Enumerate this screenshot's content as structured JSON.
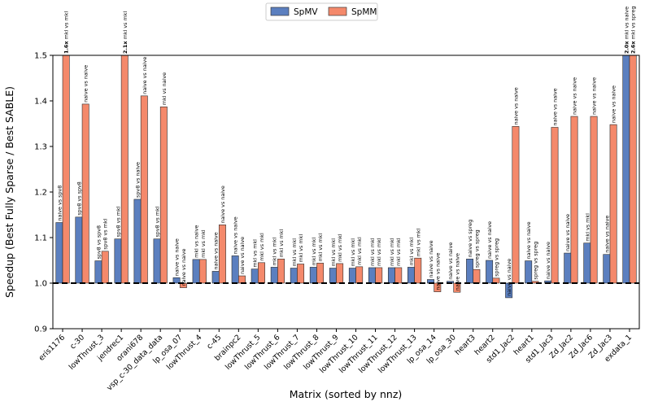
{
  "chart_data": {
    "type": "bar",
    "title": "",
    "xlabel": "Matrix (sorted by nnz)",
    "ylabel": "Speedup (Best Fully Sparse / Best SABLE)",
    "ylim": [
      0.9,
      1.5
    ],
    "yticks": [
      0.9,
      1.0,
      1.1,
      1.2,
      1.3,
      1.4,
      1.5
    ],
    "baseline": 1.0,
    "legend": {
      "position": "top-center",
      "entries": [
        "SpMV",
        "SpMM"
      ]
    },
    "categories": [
      "eris1176",
      "c-30",
      "lowThrust_3",
      "jendrec1",
      "orani678",
      "vsp_c-30_data_data",
      "lp_osa_07",
      "lowThrust_4",
      "c-45",
      "brainpc2",
      "lowThrust_5",
      "lowThrust_6",
      "lowThrust_7",
      "lowThrust_8",
      "lowThrust_9",
      "lowThrust_10",
      "lowThrust_11",
      "lowThrust_12",
      "lowThrust_13",
      "lp_osa_14",
      "lp_osa_30",
      "heart3",
      "heart2",
      "std1_Jac2",
      "heart1",
      "std1_Jac3",
      "Zd_Jac2",
      "Zd_Jac6",
      "Zd_Jac3",
      "exdata_1"
    ],
    "series": [
      {
        "name": "SpMV",
        "color": "#5b7fbf",
        "values": [
          1.133,
          1.145,
          1.049,
          1.097,
          1.184,
          1.097,
          1.012,
          1.052,
          1.026,
          1.06,
          1.031,
          1.035,
          1.033,
          1.035,
          1.033,
          1.033,
          1.034,
          1.034,
          1.035,
          1.008,
          1.004,
          1.053,
          1.05,
          0.968,
          1.049,
          1.005,
          1.066,
          1.088,
          1.063,
          2.0
        ],
        "labels": [
          "naive vs spv8",
          "spv8 vs spv8",
          "spv8 vs spv8",
          "spv8 vs mkl",
          "spv8 vs naive",
          "spv8 vs mkl",
          "naive vs naive",
          "mkl vs naive",
          "naive vs naive",
          "naive vs naive",
          "mkl vs mkl",
          "mkl vs mkl",
          "mkl vs mkl",
          "mkl vs mkl",
          "mkl vs mkl",
          "mkl vs mkl",
          "mkl vs mkl",
          "mkl vs mkl",
          "mkl vs mkl",
          "naive vs naive",
          "naive vs naive",
          "naive vs spreg",
          "naive vs naive",
          "naive vs naive",
          "naive vs naive",
          "naive vs naive",
          "naive vs naive",
          "mkl vs mkl",
          "naive vs naive",
          "mkl vs naive"
        ],
        "value_labels": [
          "",
          "",
          "",
          "",
          "",
          "",
          "",
          "",
          "",
          "",
          "",
          "",
          "",
          "",
          "",
          "",
          "",
          "",
          "",
          "",
          "",
          "",
          "",
          "",
          "",
          "",
          "",
          "",
          "",
          "2.0x"
        ]
      },
      {
        "name": "SpMM",
        "color": "#f4896b",
        "values": [
          1.6,
          1.393,
          1.07,
          2.1,
          1.411,
          1.387,
          0.99,
          1.052,
          1.128,
          1.016,
          1.045,
          1.053,
          1.042,
          1.044,
          1.043,
          1.036,
          1.034,
          1.034,
          1.055,
          0.981,
          0.98,
          1.03,
          1.011,
          1.344,
          1.004,
          1.342,
          1.366,
          1.366,
          1.348,
          2.6
        ],
        "labels": [
          "mkl vs mkl",
          "naive vs naive",
          "spv8 vs mkl",
          "mkl vs mkl",
          "naive vs naive",
          "mkl vs naive",
          "naive vs naive",
          "mkl vs mkl",
          "naive vs naive",
          "naive vs naive",
          "mkl vs mkl",
          "mkl vs mkl",
          "mkl vs mkl",
          "mkl vs mkl",
          "mkl vs mkl",
          "mkl vs mkl",
          "mkl vs mkl",
          "mkl vs mkl",
          "mkl vs mkl",
          "naive vs naive",
          "naive vs naive",
          "spreg vs spreg",
          "spreg vs spreg",
          "naive vs naive",
          "spreg vs spreg",
          "naive vs naive",
          "naive vs naive",
          "naive vs naive",
          "naive vs naive",
          "mkl vs spreg"
        ],
        "value_labels": [
          "1.6x",
          "",
          "",
          "2.1x",
          "",
          "",
          "",
          "",
          "",
          "",
          "",
          "",
          "",
          "",
          "",
          "",
          "",
          "",
          "",
          "",
          "",
          "",
          "",
          "",
          "",
          "",
          "",
          "",
          "",
          "2.6x"
        ]
      }
    ]
  }
}
